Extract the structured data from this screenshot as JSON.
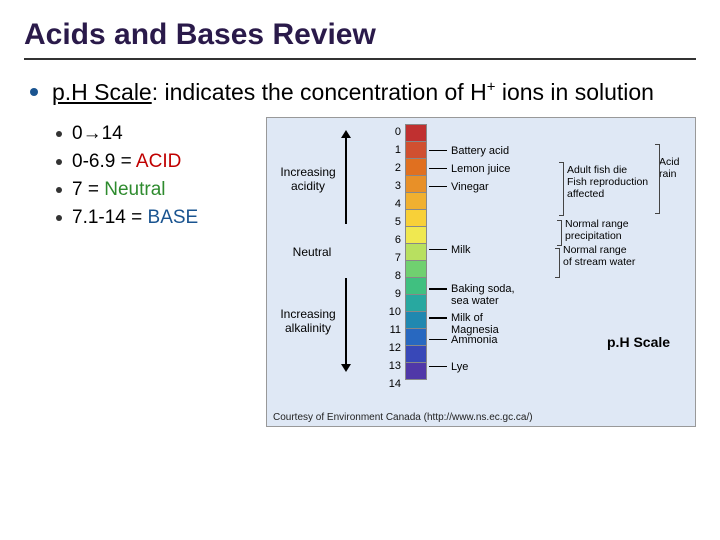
{
  "title": "Acids and Bases Review",
  "mainBullet": {
    "linkText": "p.H Scale",
    "rest": ": indicates the concentration of H",
    "sup": "+",
    "rest2": " ions in solution"
  },
  "subItems": [
    {
      "text": "0→14"
    },
    {
      "prefix": "0-6.9 = ",
      "colored": "ACID",
      "class": "acid"
    },
    {
      "prefix": "7 = ",
      "colored": "Neutral",
      "class": "neutral"
    },
    {
      "prefix": "7.1-14 = ",
      "colored": "BASE",
      "class": "base"
    }
  ],
  "chart": {
    "type": "infographic",
    "background_color": "#dfe8f5",
    "scale_values": [
      "0",
      "1",
      "2",
      "3",
      "4",
      "5",
      "6",
      "7",
      "8",
      "9",
      "10",
      "11",
      "12",
      "13",
      "14"
    ],
    "cell_colors": [
      "#c03030",
      "#d05030",
      "#e07020",
      "#e89028",
      "#f0b030",
      "#f8d038",
      "#f0e850",
      "#b8e060",
      "#70d070",
      "#40c080",
      "#28a8a0",
      "#2088b0",
      "#2868c0",
      "#3848b8",
      "#5038a8"
    ],
    "leftLabels": {
      "acidity": {
        "line1": "Increasing",
        "line2": "acidity"
      },
      "neutral": "Neutral",
      "alkalinity": {
        "line1": "Increasing",
        "line2": "alkalinity"
      }
    },
    "examples": [
      {
        "ph": 1,
        "label": "Battery acid"
      },
      {
        "ph": 2,
        "label": "Lemon juice"
      },
      {
        "ph": 3,
        "label": "Vinegar"
      },
      {
        "ph": 6.5,
        "label": "Milk"
      },
      {
        "ph": 8.7,
        "label": "Baking soda,\n  sea water"
      },
      {
        "ph": 10.3,
        "label": "Milk of\n  Magnesia"
      },
      {
        "ph": 11.5,
        "label": "Ammonia"
      },
      {
        "ph": 13,
        "label": "Lye"
      }
    ],
    "rightNotes": {
      "acidRain": "Acid\nrain",
      "fish": "Adult fish die\nFish reproduction\naffected",
      "precip": "Normal range\nprecipitation",
      "stream": "Normal range\nof stream water"
    },
    "scaleTitle": "p.H Scale",
    "credit": "Courtesy of Environment Canada (http://www.ns.ec.gc.ca/)"
  }
}
